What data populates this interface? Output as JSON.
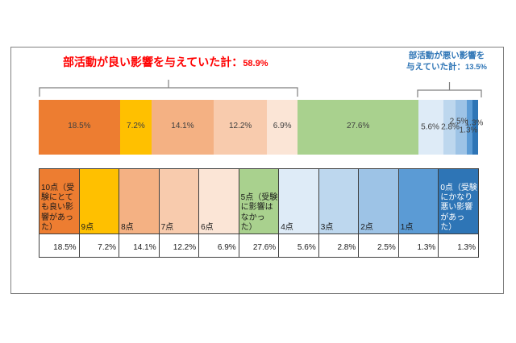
{
  "title_positive": {
    "label": "部活動が良い影響を与えていた計：",
    "value": "58.9%"
  },
  "title_negative": {
    "line1": "部活動が悪い影響を",
    "line2_label": "与えていた計：",
    "line2_value": "13.5%"
  },
  "chart_data": {
    "type": "bar",
    "stacked": true,
    "orientation": "horizontal",
    "unit": "%",
    "categories": [
      "10点（受験にとても良い影響があった）",
      "9点",
      "8点",
      "7点",
      "6点",
      "5点（受験に影響はなかった）",
      "4点",
      "3点",
      "2点",
      "1点",
      "0点（受験にかなり悪い影響があった）"
    ],
    "values": [
      18.5,
      7.2,
      14.1,
      12.2,
      6.9,
      27.6,
      5.6,
      2.8,
      2.5,
      1.3,
      1.3
    ],
    "value_labels": [
      "18.5%",
      "7.2%",
      "14.1%",
      "12.2%",
      "6.9%",
      "27.6%",
      "5.6%",
      "2.8%",
      "2.5%",
      "1.3%",
      "1.3%"
    ],
    "colors": [
      "#ED7D31",
      "#FFC000",
      "#F4B183",
      "#F8CBAD",
      "#FBE5D6",
      "#A9D18E",
      "#DEEBF7",
      "#BDD7EE",
      "#9DC3E6",
      "#5B9BD5",
      "#2E75B6"
    ],
    "summary": {
      "positive_total": "58.9%",
      "negative_total": "13.5%"
    }
  }
}
